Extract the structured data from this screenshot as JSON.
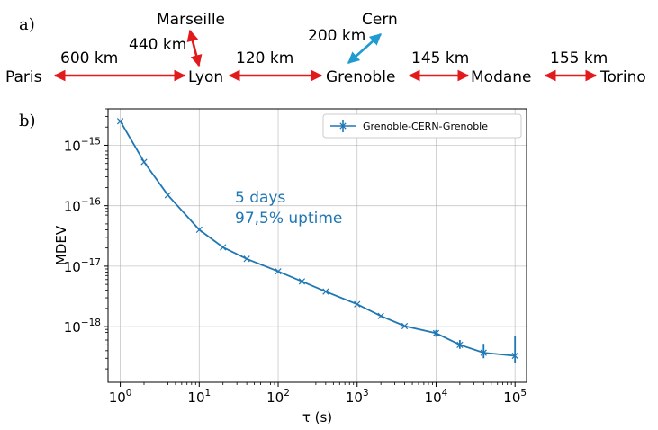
{
  "panel_labels": {
    "a": "a)",
    "b": "b)"
  },
  "map": {
    "cities": {
      "paris": "Paris",
      "lyon": "Lyon",
      "marseille": "Marseille",
      "grenoble": "Grenoble",
      "cern": "Cern",
      "modane": "Modane",
      "torino": "Torino"
    },
    "distances": {
      "paris_lyon": "600 km",
      "lyon_marseille": "440 km",
      "lyon_grenoble": "120 km",
      "grenoble_cern": "200 km",
      "grenoble_modane": "145 km",
      "modane_torino": "155 km"
    },
    "colors": {
      "red_link": "#e31a1c",
      "blue_link": "#1f9bd0"
    }
  },
  "chart_data": {
    "type": "line",
    "xlabel": "τ (s)",
    "ylabel": "MDEV",
    "xscale": "log",
    "yscale": "log",
    "xlim": [
      0.7,
      140000
    ],
    "ylim": [
      1.2e-19,
      4e-15
    ],
    "xticks": [
      1,
      10,
      100,
      1000,
      10000,
      100000
    ],
    "xtick_labels": [
      {
        "base": "10",
        "exp": "0"
      },
      {
        "base": "10",
        "exp": "1"
      },
      {
        "base": "10",
        "exp": "2"
      },
      {
        "base": "10",
        "exp": "3"
      },
      {
        "base": "10",
        "exp": "4"
      },
      {
        "base": "10",
        "exp": "5"
      }
    ],
    "yticks": [
      1e-18,
      1e-17,
      1e-16,
      1e-15
    ],
    "ytick_labels": [
      {
        "base": "10",
        "exp": "−18"
      },
      {
        "base": "10",
        "exp": "−17"
      },
      {
        "base": "10",
        "exp": "−16"
      },
      {
        "base": "10",
        "exp": "−15"
      }
    ],
    "grid": true,
    "legend_position": "top-right",
    "annotations": [
      "5 days",
      "97,5% uptime"
    ],
    "series": [
      {
        "name": "Grenoble-CERN-Grenoble",
        "color": "#1f77b4",
        "x": [
          1,
          2,
          4,
          10,
          20,
          40,
          100,
          200,
          400,
          1000,
          2000,
          4000,
          10000,
          20000,
          40000,
          100000
        ],
        "y": [
          2.5e-15,
          5.3e-16,
          1.5e-16,
          4e-17,
          2.05e-17,
          1.32e-17,
          8.2e-18,
          5.6e-18,
          3.8e-18,
          2.35e-18,
          1.5e-18,
          1.02e-18,
          7.8e-19,
          5e-19,
          3.7e-19,
          3.3e-19
        ],
        "err_low": [
          0,
          0,
          0,
          0,
          0,
          0,
          0,
          0,
          0,
          0,
          0,
          0,
          6.8e-19,
          4.3e-19,
          3e-19,
          2.5e-19
        ],
        "err_high": [
          0,
          0,
          0,
          0,
          0,
          0,
          0,
          0,
          0,
          0,
          0,
          0,
          8.8e-19,
          6e-19,
          5.2e-19,
          7e-19
        ]
      }
    ]
  }
}
